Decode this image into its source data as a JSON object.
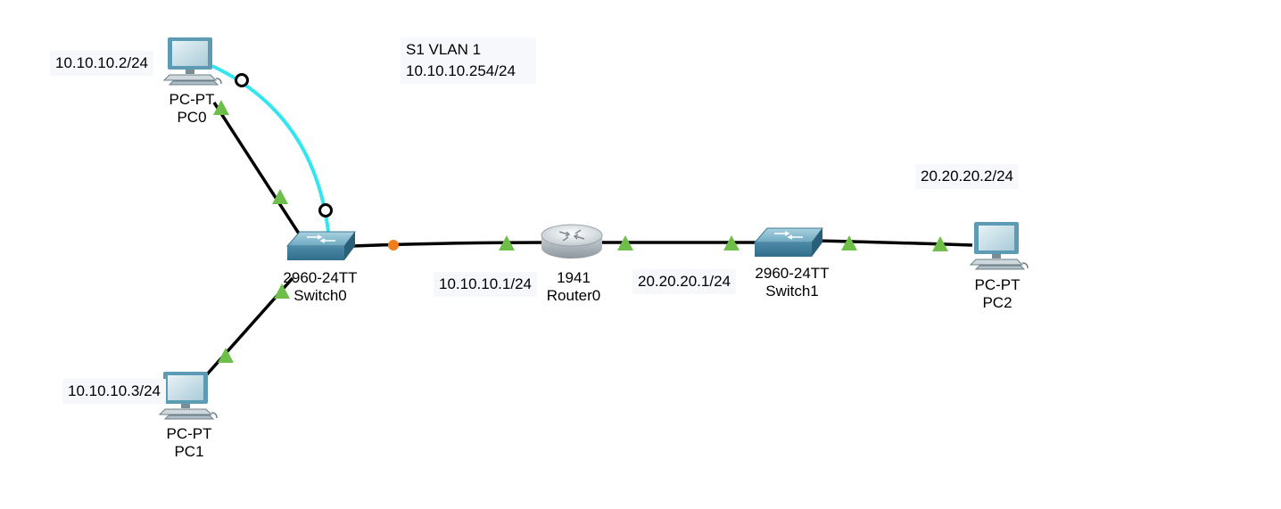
{
  "devices": {
    "pc0": {
      "model": "PC-PT",
      "name": "PC0",
      "ip": "10.10.10.2/24"
    },
    "pc1": {
      "model": "PC-PT",
      "name": "PC1",
      "ip": "10.10.10.3/24"
    },
    "pc2": {
      "model": "PC-PT",
      "name": "PC2",
      "ip": "20.20.20.2/24"
    },
    "switch0": {
      "model": "2960-24TT",
      "name": "Switch0"
    },
    "router0": {
      "model": "1941",
      "name": "Router0"
    },
    "switch1": {
      "model": "2960-24TT",
      "name": "Switch1"
    }
  },
  "notes": {
    "svi_line1": "S1 VLAN 1",
    "svi_line2": "10.10.10.254/24",
    "router_g0": "10.10.10.1/24",
    "router_g1": "20.20.20.1/24"
  },
  "links": [
    {
      "from": "pc0",
      "to": "switch0",
      "cable": "copper-straight",
      "status": "up"
    },
    {
      "from": "pc0",
      "to": "switch0",
      "cable": "console",
      "status": "connected"
    },
    {
      "from": "pc1",
      "to": "switch0",
      "cable": "copper-straight",
      "status": "up"
    },
    {
      "from": "switch0",
      "to": "router0",
      "cable": "copper-straight",
      "status": "negotiating"
    },
    {
      "from": "router0",
      "to": "switch1",
      "cable": "copper-straight",
      "status": "up"
    },
    {
      "from": "switch1",
      "to": "pc2",
      "cable": "copper-straight",
      "status": "up"
    }
  ],
  "colors": {
    "link": "#000000",
    "console": "#33e5f0",
    "link_up": "#6dbf4a",
    "link_pending": "#f27d1c",
    "device_blue": "#5d9bb5"
  }
}
